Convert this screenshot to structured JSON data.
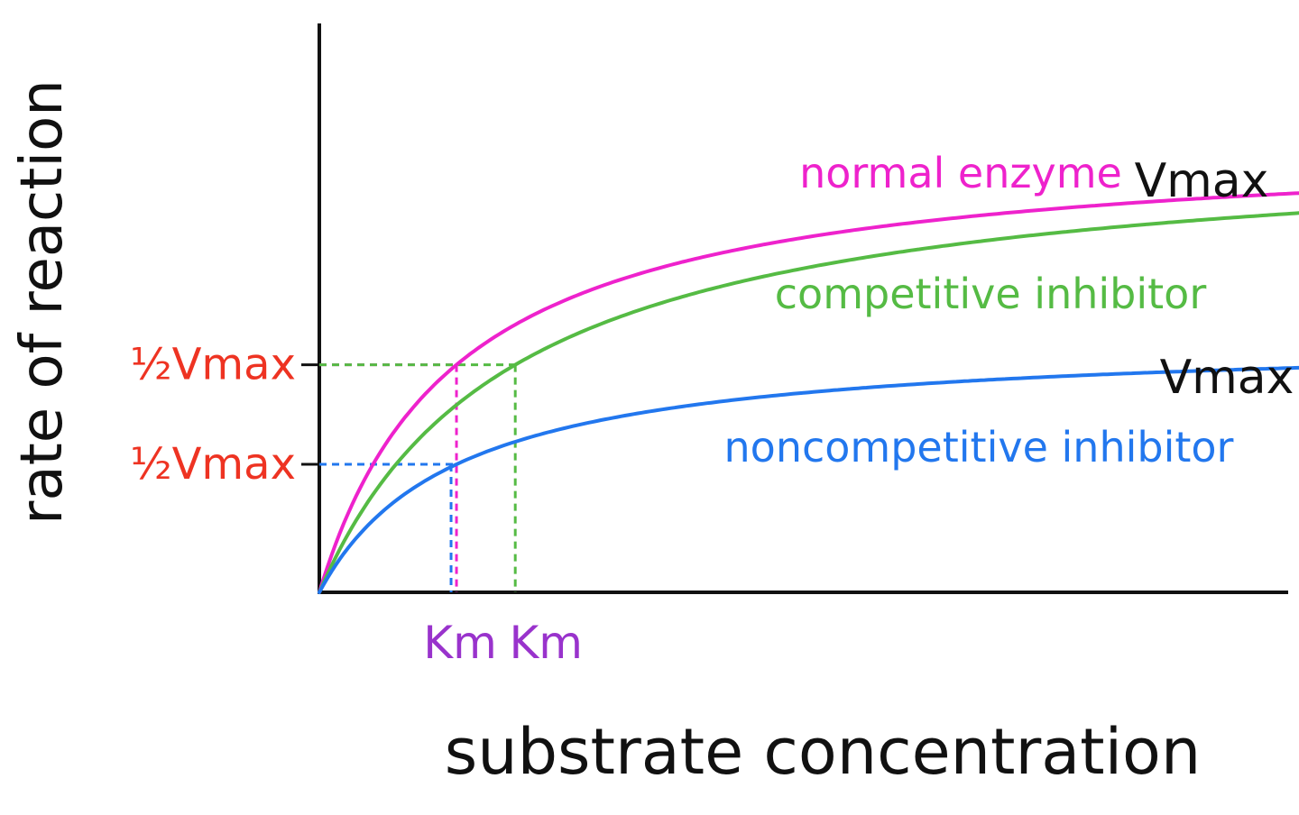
{
  "chart_data": {
    "type": "line",
    "title": "",
    "xlabel": "substrate concentration",
    "ylabel": "rate of reaction",
    "xlim": [
      0,
      10
    ],
    "ylim": [
      0,
      1.0
    ],
    "grid": false,
    "series": [
      {
        "name": "normal enzyme",
        "color": "#ee22cc",
        "vmax": 0.8,
        "km": 1.4,
        "vmax_label": "Vmax"
      },
      {
        "name": "competitive inhibitor",
        "color": "#55bb44",
        "vmax": 0.8,
        "km": 2.0,
        "vmax_label": ""
      },
      {
        "name": "noncompetitive inhibitor",
        "color": "#2277ee",
        "vmax": 0.45,
        "km": 1.4,
        "vmax_label": "Vmax"
      }
    ],
    "annotations": {
      "half_vmax_labels": [
        {
          "text": "½Vmax",
          "color": "#ee3322",
          "series": 0
        },
        {
          "text": "½Vmax",
          "color": "#ee3322",
          "series": 2
        }
      ],
      "km_labels": [
        {
          "text": "Km",
          "color": "#9933cc",
          "series": 0
        },
        {
          "text": "Km",
          "color": "#9933cc",
          "series": 1
        }
      ]
    }
  }
}
